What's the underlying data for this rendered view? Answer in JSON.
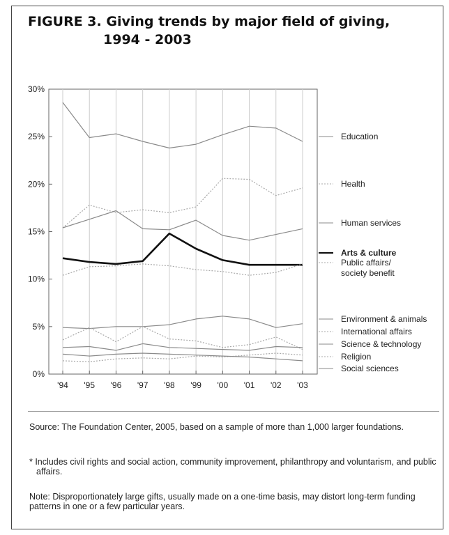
{
  "figure": {
    "title_line1": "FIGURE 3. Giving trends by major field of giving,",
    "title_line2": "1994 - 2003"
  },
  "notes": {
    "source": "Source: The Foundation Center, 2005, based on a sample of more than 1,000 larger foundations.",
    "asterisk": "* Includes civil rights and social action, community improvement, philanthropy and voluntarism, and public affairs.",
    "note": "Note: Disproportionately large gifts, usually made on a one-time basis, may distort long-term funding patterns in one or a few particular years."
  },
  "colors": {
    "solid_line": "#8a8a8a",
    "dashed_line": "#a8a8a8",
    "highlight_line": "#111111",
    "grid": "#cccccc"
  },
  "chart_data": {
    "type": "line",
    "title": "FIGURE 3. Giving trends by major field of giving, 1994 - 2003",
    "xlabel": "",
    "ylabel": "",
    "categories": [
      "'94",
      "'95",
      "'96",
      "'97",
      "'98",
      "'99",
      "'00",
      "'01",
      "'02",
      "'03"
    ],
    "ylim": [
      0,
      30
    ],
    "yticks": [
      0,
      5,
      10,
      15,
      20,
      25,
      30
    ],
    "ytick_labels": [
      "0%",
      "5%",
      "10%",
      "15%",
      "20%",
      "25%",
      "30%"
    ],
    "grid": "vertical",
    "legend_position": "right",
    "series": [
      {
        "name": "Education",
        "style": "solid",
        "values": [
          28.6,
          24.9,
          25.3,
          24.5,
          23.8,
          24.2,
          25.2,
          26.1,
          25.9,
          24.5
        ]
      },
      {
        "name": "Health",
        "style": "dotted",
        "values": [
          15.4,
          17.8,
          17.0,
          17.3,
          17.0,
          17.6,
          20.6,
          20.5,
          18.8,
          19.6
        ]
      },
      {
        "name": "Human services",
        "style": "solid",
        "values": [
          15.4,
          16.3,
          17.2,
          15.3,
          15.2,
          16.2,
          14.6,
          14.1,
          14.7,
          15.3
        ]
      },
      {
        "name": "Arts & culture",
        "style": "bold",
        "values": [
          12.2,
          11.8,
          11.6,
          11.9,
          14.8,
          13.2,
          12.0,
          11.5,
          11.5,
          11.5
        ]
      },
      {
        "name": "Public affairs/ society benefit",
        "style": "dotted",
        "values": [
          10.4,
          11.3,
          11.4,
          11.6,
          11.4,
          11.0,
          10.8,
          10.4,
          10.7,
          11.6
        ]
      },
      {
        "name": "Environment & animals",
        "style": "solid",
        "values": [
          4.9,
          4.8,
          5.0,
          5.0,
          5.2,
          5.8,
          6.1,
          5.8,
          4.9,
          5.3
        ]
      },
      {
        "name": "International affairs",
        "style": "dotted",
        "values": [
          3.6,
          4.9,
          3.4,
          5.0,
          3.7,
          3.5,
          2.8,
          3.1,
          3.9,
          2.6
        ]
      },
      {
        "name": "Science & technology",
        "style": "solid",
        "values": [
          2.8,
          2.9,
          2.5,
          3.2,
          2.8,
          2.7,
          2.6,
          2.5,
          2.9,
          2.8
        ]
      },
      {
        "name": "Religion",
        "style": "dotted",
        "values": [
          1.4,
          1.3,
          1.6,
          1.7,
          1.6,
          1.9,
          1.8,
          2.0,
          2.2,
          2.0
        ]
      },
      {
        "name": "Social sciences",
        "style": "solid",
        "values": [
          2.1,
          1.9,
          2.1,
          2.2,
          2.1,
          2.0,
          1.9,
          1.8,
          1.6,
          1.4
        ]
      }
    ],
    "legend": [
      {
        "lines": [
          "Education"
        ],
        "bold": false
      },
      {
        "lines": [
          "Health"
        ],
        "bold": false
      },
      {
        "lines": [
          "Human services"
        ],
        "bold": false
      },
      {
        "lines": [
          "Arts & culture"
        ],
        "bold": true
      },
      {
        "lines": [
          "Public affairs/",
          "society benefit"
        ],
        "bold": false
      },
      {
        "lines": [
          "Environment & animals"
        ],
        "bold": false
      },
      {
        "lines": [
          "International affairs"
        ],
        "bold": false
      },
      {
        "lines": [
          "Science & technology"
        ],
        "bold": false
      },
      {
        "lines": [
          "Religion"
        ],
        "bold": false
      },
      {
        "lines": [
          "Social sciences"
        ],
        "bold": false
      }
    ]
  }
}
